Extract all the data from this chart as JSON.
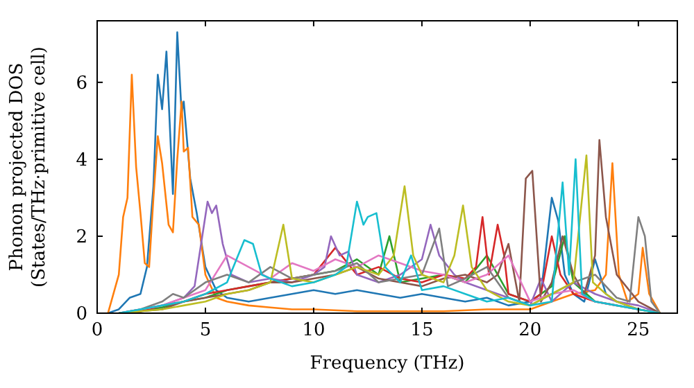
{
  "chart_data": {
    "type": "line",
    "xlabel": "Frequency (THz)",
    "ylabel": "Phonon projected DOS\n(States/THz·primitive cell)",
    "xlim": [
      0,
      26.8
    ],
    "ylim": [
      0,
      7.6
    ],
    "xticks": [
      0,
      5,
      10,
      15,
      20,
      25
    ],
    "yticks": [
      0,
      2,
      4,
      6
    ],
    "grid": false,
    "marker": "none",
    "line_style": "solid",
    "series": [
      {
        "color": "#1f77b4",
        "x": [
          0.5,
          1,
          1.5,
          2,
          2.3,
          2.6,
          2.8,
          3.0,
          3.2,
          3.5,
          3.7,
          3.9,
          4.0,
          4.3,
          4.6,
          5,
          5.5,
          6,
          7,
          8,
          9,
          10,
          11,
          12,
          13,
          14,
          15,
          16,
          17,
          18,
          19,
          20,
          20.5,
          21,
          21.3,
          21.6,
          22,
          22.5,
          23,
          23.5,
          24,
          24.5,
          25,
          25.5,
          26
        ],
        "values": [
          0,
          0.1,
          0.4,
          0.5,
          1.2,
          3.3,
          6.2,
          5.3,
          6.8,
          3.1,
          7.3,
          5.2,
          5.5,
          3.5,
          2.6,
          1.2,
          0.6,
          0.4,
          0.3,
          0.4,
          0.5,
          0.6,
          0.5,
          0.6,
          0.5,
          0.4,
          0.5,
          0.4,
          0.3,
          0.4,
          0.2,
          0.3,
          0.5,
          3.0,
          2.4,
          1.0,
          0.5,
          0.3,
          1.4,
          0.5,
          0.3,
          0.2,
          0.1,
          0.05,
          0
        ]
      },
      {
        "color": "#ff7f0e",
        "x": [
          0.5,
          1,
          1.2,
          1.4,
          1.6,
          1.8,
          2,
          2.2,
          2.4,
          2.6,
          2.8,
          3.0,
          3.3,
          3.5,
          3.7,
          3.9,
          4.0,
          4.2,
          4.4,
          4.7,
          5,
          5.5,
          6,
          7,
          8,
          9,
          10,
          12,
          14,
          16,
          18,
          20,
          21,
          22,
          23,
          23.5,
          23.8,
          24.1,
          24.5,
          25,
          25.2,
          25.5,
          26
        ],
        "values": [
          0,
          1,
          2.5,
          3.0,
          6.2,
          3.8,
          2.6,
          1.3,
          1.2,
          3.0,
          4.6,
          3.9,
          2.3,
          2.1,
          4.0,
          5.5,
          4.2,
          4.3,
          2.5,
          2.3,
          1.0,
          0.4,
          0.3,
          0.2,
          0.15,
          0.1,
          0.1,
          0.05,
          0.05,
          0.05,
          0.1,
          0.1,
          0.3,
          0.5,
          0.6,
          1.0,
          3.9,
          1.0,
          0.3,
          0.5,
          1.7,
          0.5,
          0
        ]
      },
      {
        "color": "#2ca02c",
        "x": [
          1,
          2,
          3,
          4,
          5,
          6,
          7,
          8,
          9,
          10,
          11,
          12,
          13,
          13.5,
          14,
          15,
          16,
          17,
          18,
          19,
          20,
          21,
          21.6,
          22,
          23,
          24,
          25,
          26
        ],
        "values": [
          0,
          0.05,
          0.15,
          0.3,
          0.4,
          0.6,
          0.7,
          0.8,
          0.9,
          1.0,
          1.1,
          1.4,
          1.0,
          2.0,
          0.8,
          0.9,
          1.0,
          0.8,
          1.5,
          0.5,
          0.3,
          0.7,
          2.0,
          0.8,
          0.3,
          0.2,
          0.1,
          0
        ]
      },
      {
        "color": "#d62728",
        "x": [
          1,
          2,
          3,
          4,
          5,
          6,
          7,
          8,
          9,
          10,
          11,
          12,
          13,
          14,
          15,
          16,
          17,
          17.5,
          17.8,
          18.1,
          18.5,
          18.8,
          19,
          20,
          20.5,
          21,
          21.4,
          22,
          23,
          24
        ],
        "values": [
          0,
          0.05,
          0.2,
          0.3,
          0.5,
          0.6,
          0.7,
          0.8,
          0.9,
          1.0,
          1.7,
          1.0,
          1.2,
          0.9,
          0.8,
          1.0,
          0.9,
          1.2,
          2.5,
          1.0,
          2.3,
          1.5,
          0.5,
          0.3,
          0.5,
          2.0,
          1.0,
          0.5,
          0.3,
          0.2
        ]
      },
      {
        "color": "#9467bd",
        "x": [
          1,
          2,
          3,
          4,
          4.5,
          5.1,
          5.3,
          5.5,
          5.8,
          6.2,
          7,
          8,
          9,
          10,
          10.5,
          10.8,
          11.2,
          11.6,
          12,
          13,
          14,
          15,
          15.4,
          15.8,
          16.5,
          17,
          18,
          19,
          20,
          20.5,
          21,
          22,
          23,
          24,
          25,
          26
        ],
        "values": [
          0,
          0.1,
          0.2,
          0.4,
          0.7,
          2.9,
          2.6,
          2.8,
          1.8,
          1.0,
          0.8,
          0.9,
          0.8,
          1.0,
          1.2,
          2.0,
          1.5,
          1.6,
          1.0,
          0.8,
          1.0,
          1.4,
          2.3,
          1.5,
          1.0,
          0.8,
          0.6,
          0.4,
          0.2,
          0.9,
          0.3,
          0.8,
          0.5,
          0.3,
          0.2,
          0
        ]
      },
      {
        "color": "#8c564b",
        "x": [
          1,
          2,
          3,
          4,
          5,
          6,
          7,
          8,
          9,
          10,
          11,
          12,
          13,
          14,
          15,
          16,
          17,
          18,
          18.5,
          19,
          19.5,
          19.8,
          20.1,
          20.5,
          21,
          21.5,
          22,
          22.5,
          23,
          23.2,
          23.5,
          24,
          25,
          26
        ],
        "values": [
          0,
          0.05,
          0.1,
          0.3,
          0.4,
          0.5,
          0.6,
          0.8,
          0.8,
          0.9,
          1.0,
          1.2,
          0.9,
          0.8,
          0.7,
          0.9,
          1.0,
          0.8,
          1.0,
          1.8,
          0.3,
          3.5,
          3.7,
          0.3,
          0.8,
          2.0,
          1.0,
          0.5,
          1.5,
          4.5,
          2.5,
          1.0,
          0.3,
          0
        ]
      },
      {
        "color": "#e377c2",
        "x": [
          1,
          2,
          3,
          4,
          5,
          6,
          7,
          8,
          9,
          10,
          11,
          12,
          13,
          14,
          15,
          16,
          17,
          18,
          19,
          20,
          21,
          22,
          23,
          24,
          25,
          26
        ],
        "values": [
          0,
          0.1,
          0.2,
          0.4,
          0.6,
          1.5,
          1.2,
          0.9,
          1.3,
          1.1,
          1.4,
          1.2,
          1.5,
          1.3,
          1.1,
          1.0,
          0.8,
          1.0,
          1.5,
          0.3,
          0.5,
          0.6,
          0.3,
          0.2,
          0.1,
          0
        ]
      },
      {
        "color": "#7f7f7f",
        "x": [
          1,
          2,
          3,
          3.5,
          4,
          5,
          6,
          7,
          8,
          9,
          10,
          11,
          12,
          13,
          14,
          15,
          15.8,
          16.2,
          17,
          18,
          19,
          20,
          21,
          22,
          23,
          24,
          24.6,
          25,
          25.3,
          25.6,
          26
        ],
        "values": [
          0,
          0.1,
          0.3,
          0.5,
          0.4,
          0.8,
          1.0,
          0.8,
          1.2,
          0.9,
          1.0,
          1.1,
          1.3,
          0.8,
          0.9,
          1.0,
          2.2,
          0.7,
          0.9,
          1.2,
          0.4,
          0.2,
          0.5,
          0.8,
          1.0,
          0.4,
          0.3,
          2.5,
          2.0,
          0.3,
          0
        ]
      },
      {
        "color": "#bcbd22",
        "x": [
          1,
          2,
          3,
          4,
          5,
          6,
          7,
          8,
          8.6,
          9,
          10,
          11,
          12,
          13,
          13.7,
          14.2,
          14.6,
          15,
          16,
          16.5,
          16.9,
          17.3,
          18,
          19,
          20,
          21,
          22,
          22.6,
          22.9,
          23.5,
          24,
          25,
          26
        ],
        "values": [
          0,
          0.05,
          0.1,
          0.2,
          0.3,
          0.5,
          0.6,
          0.8,
          2.3,
          0.9,
          0.8,
          1.0,
          1.2,
          1.0,
          1.5,
          3.3,
          1.5,
          1.0,
          0.8,
          1.5,
          2.8,
          1.2,
          0.6,
          0.3,
          0.2,
          0.5,
          0.8,
          4.1,
          0.8,
          0.5,
          0.3,
          0.1,
          0
        ]
      },
      {
        "color": "#17becf",
        "x": [
          1,
          2,
          3,
          4,
          5,
          6,
          6.8,
          7.2,
          7.6,
          8,
          9,
          10,
          11,
          11.5,
          12,
          12.3,
          12.5,
          12.9,
          13.3,
          14,
          14.5,
          15,
          16,
          17,
          18,
          19,
          20,
          21,
          21.5,
          21.8,
          22.1,
          22.4,
          23,
          24,
          25,
          26
        ],
        "values": [
          0,
          0.1,
          0.2,
          0.3,
          0.5,
          0.8,
          1.9,
          1.8,
          1.0,
          0.9,
          0.7,
          0.8,
          1.0,
          1.2,
          2.9,
          2.3,
          2.5,
          2.6,
          1.2,
          0.8,
          1.5,
          0.6,
          0.7,
          0.5,
          0.3,
          0.4,
          0.2,
          0.3,
          3.4,
          1.0,
          4.0,
          0.5,
          0.3,
          0.2,
          0.1,
          0
        ]
      }
    ]
  }
}
